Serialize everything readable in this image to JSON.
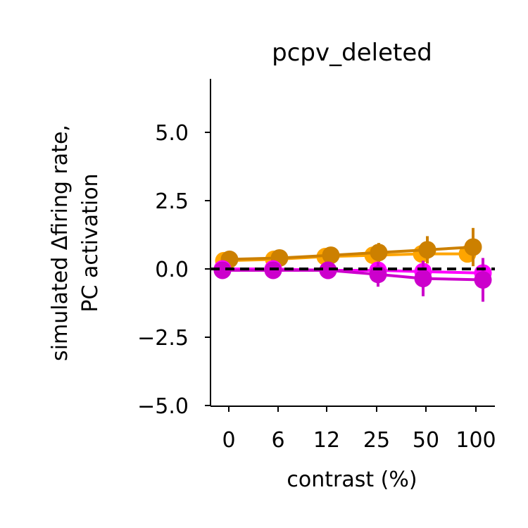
{
  "chart_data": {
    "type": "line",
    "title": "pcpv_deleted",
    "xlabel": "contrast (%)",
    "ylabel_line1": "simulated Δfiring rate,",
    "ylabel_line2": "PC activation",
    "categories": [
      "0",
      "6",
      "12",
      "25",
      "50",
      "100"
    ],
    "yticks": [
      "5.0",
      "2.5",
      "0.0",
      "−2.5",
      "−5.0"
    ],
    "ytick_values": [
      5.0,
      2.5,
      0.0,
      -2.5,
      -5.0
    ],
    "ylim": [
      -5.0,
      7.1
    ],
    "reference_line": 0.0,
    "grid": false,
    "legend": "none",
    "series": [
      {
        "color": "#ffa500",
        "values": [
          0.3,
          0.35,
          0.45,
          0.5,
          0.55,
          0.55
        ],
        "errors": [
          0.08,
          0.08,
          0.12,
          0.25,
          0.3,
          0.3
        ]
      },
      {
        "color": "#cc8000",
        "values": [
          0.35,
          0.4,
          0.5,
          0.6,
          0.7,
          0.8
        ],
        "errors": [
          0.1,
          0.1,
          0.15,
          0.35,
          0.5,
          0.7
        ]
      },
      {
        "color": "#ff00ff",
        "values": [
          0.0,
          0.0,
          -0.05,
          -0.05,
          -0.1,
          -0.15
        ],
        "errors": [
          0.05,
          0.05,
          0.1,
          0.2,
          0.3,
          0.35
        ]
      },
      {
        "color": "#cc00cc",
        "values": [
          -0.05,
          -0.05,
          -0.05,
          -0.2,
          -0.35,
          -0.4
        ],
        "errors": [
          0.05,
          0.05,
          0.1,
          0.45,
          0.65,
          0.8
        ]
      }
    ]
  }
}
